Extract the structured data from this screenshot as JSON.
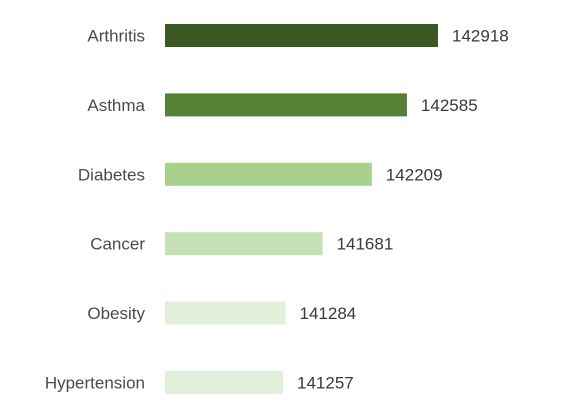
{
  "chart_data": {
    "type": "bar",
    "orientation": "horizontal",
    "categories": [
      "Arthritis",
      "Asthma",
      "Diabetes",
      "Cancer",
      "Obesity",
      "Hypertension"
    ],
    "values": [
      142918,
      142585,
      142209,
      141681,
      141284,
      141257
    ],
    "value_labels": [
      "142918",
      "142585",
      "142209",
      "141681",
      "141284",
      "141257"
    ],
    "colors": [
      "#3b5a23",
      "#548235",
      "#a9d18e",
      "#c5e0b4",
      "#e2efda",
      "#e2efda"
    ],
    "grid": false,
    "legend": "none"
  }
}
